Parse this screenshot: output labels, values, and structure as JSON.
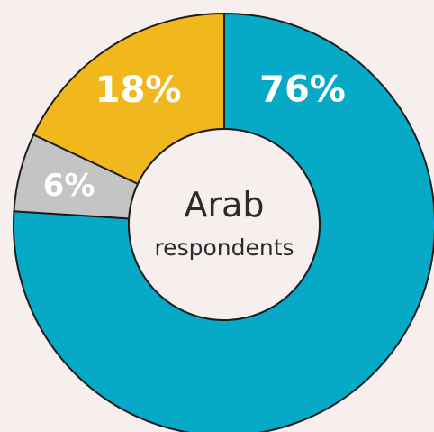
{
  "chart_data": {
    "type": "pie",
    "donut": true,
    "center_label": {
      "line1": "Arab",
      "line2": "respondents"
    },
    "slices": [
      {
        "value": 76,
        "label": "76%",
        "color": "#06a9c6"
      },
      {
        "value": 6,
        "label": "6%",
        "color": "#c4c4c4"
      },
      {
        "value": 18,
        "label": "18%",
        "color": "#f0b81c"
      }
    ],
    "background": "#f6efed",
    "outline": "#1d1d1d"
  }
}
